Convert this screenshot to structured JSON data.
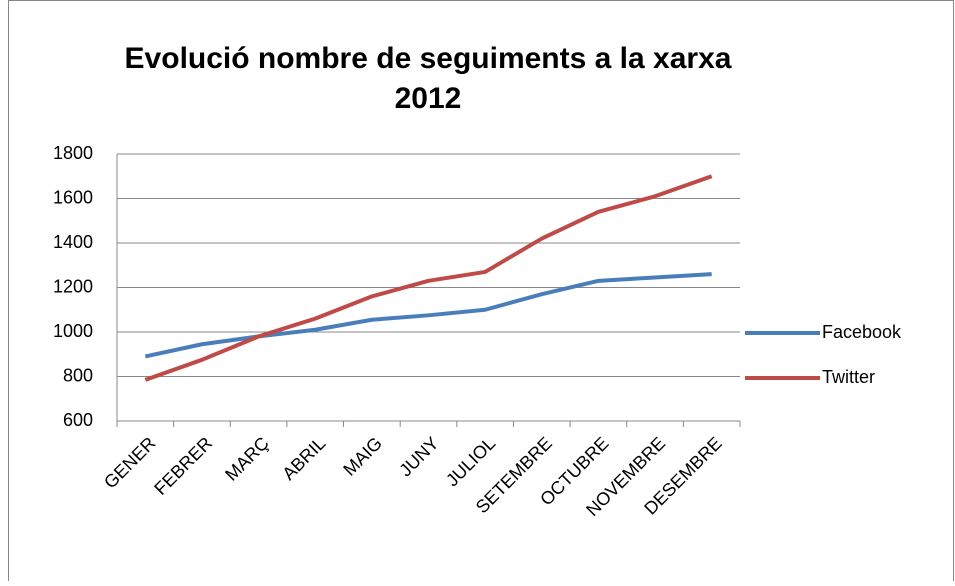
{
  "chart_data": {
    "type": "line",
    "title": "Evolució nombre de seguiments a la xarxa 2012",
    "categories": [
      "GENER",
      "FEBRER",
      "MARÇ",
      "ABRIL",
      "MAIG",
      "JUNY",
      "JULIOL",
      "SETEMBRE",
      "OCTUBRE",
      "NOVEMBRE",
      "DESEMBRE"
    ],
    "series": [
      {
        "name": "Facebook",
        "color": "#4a7ebb",
        "values": [
          890,
          945,
          980,
          1010,
          1055,
          1075,
          1100,
          1170,
          1230,
          1245,
          1260
        ]
      },
      {
        "name": "Twitter",
        "color": "#be4b48",
        "values": [
          785,
          875,
          980,
          1060,
          1160,
          1230,
          1270,
          1420,
          1540,
          1610,
          1700
        ]
      }
    ],
    "ylim": [
      600,
      1800
    ],
    "yticks": [
      600,
      800,
      1000,
      1200,
      1400,
      1600,
      1800
    ],
    "grid": true,
    "legend": "right"
  }
}
